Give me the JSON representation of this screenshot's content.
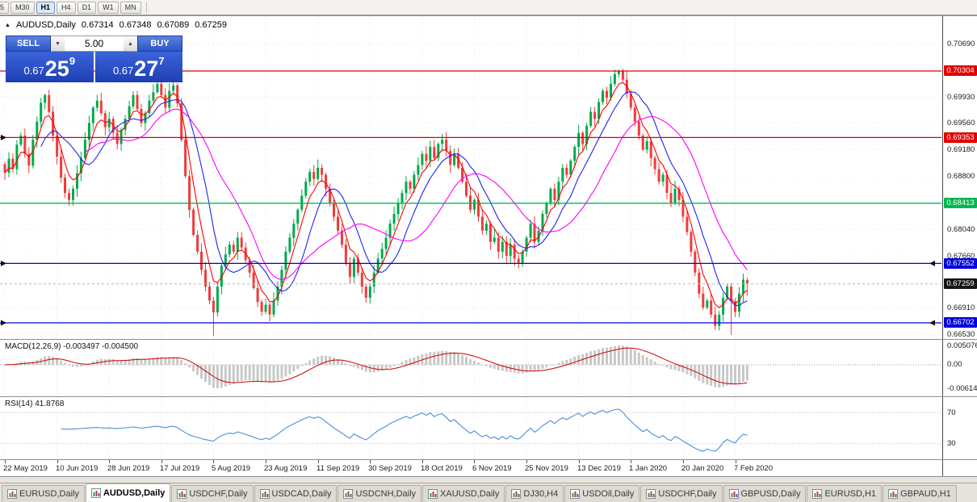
{
  "toolbar": {
    "timeframes": [
      {
        "label": "5",
        "active": false
      },
      {
        "label": "M30",
        "active": false
      },
      {
        "label": "H1",
        "active": true
      },
      {
        "label": "H4",
        "active": false
      },
      {
        "label": "D1",
        "active": false
      },
      {
        "label": "W1",
        "active": false
      },
      {
        "label": "MN",
        "active": false
      }
    ]
  },
  "chart_header": {
    "collapse_icon": "▲",
    "symbol": "AUDUSD,Daily",
    "open": "0.67314",
    "high": "0.67348",
    "low": "0.67089",
    "close": "0.67259"
  },
  "trade_panel": {
    "sell_label": "SELL",
    "buy_label": "BUY",
    "volume": "5.00",
    "spin_down_glyph": "▼",
    "spin_up_glyph": "▲",
    "sell_price_base": "0.67",
    "sell_price_big": "25",
    "sell_price_sup": "9",
    "buy_price_base": "0.67",
    "buy_price_big": "27",
    "buy_price_sup": "7",
    "panel_color": "#2c55c4"
  },
  "indicators": {
    "macd": {
      "label": "MACD(12,26,9) -0.003497 -0.004500",
      "axis": [
        "0.005076",
        "0.00",
        "-0.006148"
      ]
    },
    "rsi": {
      "label": "RSI(14) 41.8768",
      "axis": [
        "70",
        "30"
      ]
    }
  },
  "price_axis": {
    "plain_labels": [
      "0.70690",
      "0.69930",
      "0.69560",
      "0.69180",
      "0.68800",
      "0.68040",
      "0.67660",
      "0.66910",
      "0.66530"
    ],
    "plain_prices": [
      0.7069,
      0.6993,
      0.6956,
      0.6918,
      0.688,
      0.6804,
      0.6766,
      0.6691,
      0.6653
    ],
    "badges": [
      {
        "label": "0.70304",
        "price": 0.70304,
        "color": "#E00000"
      },
      {
        "label": "0.69353",
        "price": 0.69353,
        "color": "#E00000"
      },
      {
        "label": "0.68413",
        "price": 0.68413,
        "color": "#00B851"
      },
      {
        "label": "0.67552",
        "price": 0.67552,
        "color": "#0000DD"
      },
      {
        "label": "0.67259",
        "price": 0.67259,
        "color": "#141414"
      },
      {
        "label": "0.66702",
        "price": 0.66702,
        "color": "#0000DD"
      }
    ]
  },
  "date_axis": {
    "bars_per_label": 13,
    "labels": [
      "22 May 2019",
      "10 Jun 2019",
      "28 Jun 2019",
      "17 Jul 2019",
      "5 Aug 2019",
      "23 Aug 2019",
      "11 Sep 2019",
      "30 Sep 2019",
      "18 Oct 2019",
      "6 Nov 2019",
      "25 Nov 2019",
      "13 Dec 2019",
      "1 Jan 2020",
      "20 Jan 2020",
      "7 Feb 2020"
    ]
  },
  "tabbar": {
    "tabs": [
      {
        "label": "EURUSD,Daily",
        "active": false
      },
      {
        "label": "AUDUSD,Daily",
        "active": true
      },
      {
        "label": "USDCHF,Daily",
        "active": false
      },
      {
        "label": "USDCAD,Daily",
        "active": false
      },
      {
        "label": "USDCNH,Daily",
        "active": false
      },
      {
        "label": "XAUUSD,Daily",
        "active": false
      },
      {
        "label": "DJ30,H4",
        "active": false
      },
      {
        "label": "USDOil,Daily",
        "active": false
      },
      {
        "label": "USDCHF,Daily",
        "active": false
      },
      {
        "label": "GBPUSD,Daily",
        "active": false
      },
      {
        "label": "EURUSD,H1",
        "active": false
      },
      {
        "label": "GBPAUD,H1",
        "active": false
      }
    ]
  },
  "chart_data": {
    "type": "candlestick",
    "symbol": "AUDUSD",
    "timeframe": "Daily",
    "x_start_label": "22 May 2019",
    "x_end_label": "7 Feb 2020",
    "visible_bars": 186,
    "price_range": [
      0.66471,
      0.71089
    ],
    "closes": [
      0.6885,
      0.6905,
      0.689,
      0.6925,
      0.6938,
      0.6912,
      0.6895,
      0.6932,
      0.6958,
      0.6985,
      0.6996,
      0.6972,
      0.6938,
      0.6908,
      0.6878,
      0.6856,
      0.6846,
      0.6862,
      0.6884,
      0.6906,
      0.6932,
      0.6956,
      0.6978,
      0.6988,
      0.697,
      0.695,
      0.6962,
      0.6942,
      0.6926,
      0.6946,
      0.6962,
      0.698,
      0.6996,
      0.6976,
      0.6956,
      0.697,
      0.6988,
      0.7,
      0.7012,
      0.6996,
      0.6978,
      0.7002,
      0.701,
      0.6984,
      0.6932,
      0.688,
      0.6832,
      0.6796,
      0.6772,
      0.6746,
      0.6722,
      0.6702,
      0.6685,
      0.6722,
      0.6752,
      0.6768,
      0.6782,
      0.6772,
      0.6792,
      0.6778,
      0.676,
      0.6742,
      0.672,
      0.67,
      0.6686,
      0.6696,
      0.6682,
      0.6702,
      0.6722,
      0.6746,
      0.6772,
      0.6792,
      0.6812,
      0.6832,
      0.6852,
      0.6872,
      0.6886,
      0.6876,
      0.6892,
      0.6882,
      0.6862,
      0.6842,
      0.6822,
      0.6802,
      0.6782,
      0.6756,
      0.6736,
      0.6762,
      0.6742,
      0.6722,
      0.6706,
      0.6722,
      0.6742,
      0.6762,
      0.6776,
      0.6792,
      0.6812,
      0.6826,
      0.6842,
      0.6856,
      0.6872,
      0.6862,
      0.6882,
      0.6896,
      0.6912,
      0.6902,
      0.6922,
      0.6906,
      0.6926,
      0.6932,
      0.6916,
      0.6896,
      0.6912,
      0.6892,
      0.6872,
      0.6852,
      0.6832,
      0.6846,
      0.6822,
      0.6802,
      0.6812,
      0.6786,
      0.6792,
      0.6772,
      0.6786,
      0.6766,
      0.6782,
      0.6762,
      0.6756,
      0.6772,
      0.6792,
      0.6812,
      0.6786,
      0.6802,
      0.6826,
      0.6842,
      0.6862,
      0.6846,
      0.6872,
      0.6892,
      0.6882,
      0.6902,
      0.6922,
      0.6942,
      0.6926,
      0.6952,
      0.6972,
      0.6962,
      0.6986,
      0.7002,
      0.6992,
      0.7012,
      0.7026,
      0.703,
      0.7018,
      0.6998,
      0.6978,
      0.6958,
      0.6938,
      0.6918,
      0.693,
      0.6906,
      0.689,
      0.6872,
      0.6882,
      0.6856,
      0.6842,
      0.6862,
      0.6846,
      0.6822,
      0.68,
      0.6772,
      0.6742,
      0.6712,
      0.6692,
      0.6702,
      0.6682,
      0.6666,
      0.6682,
      0.6706,
      0.6722,
      0.6701,
      0.6686,
      0.6712,
      0.6732,
      0.67259
    ],
    "last_candle": {
      "open": 0.67314,
      "high": 0.67348,
      "low": 0.67089,
      "close": 0.67259
    },
    "wick_overrides": {
      "42": {
        "high": 0.7016
      },
      "52": {
        "low": 0.6651
      },
      "153": {
        "high": 0.7032
      },
      "177": {
        "low": 0.666
      },
      "181": {
        "low": 0.6653
      }
    },
    "colors": {
      "up": "#00A94C",
      "down": "#F03B3B"
    },
    "current_price": {
      "price": 0.67259,
      "color": "#141414"
    },
    "levels": [
      {
        "price": 0.70304,
        "color": "#E00000",
        "label": "0.70304",
        "left_arrow": false,
        "right_arrow": false
      },
      {
        "price": 0.69353,
        "color": "#E00000",
        "label": "0.69353",
        "left_arrow": true,
        "right_arrow": false
      },
      {
        "price": 0.68413,
        "color": "#00B851",
        "label": "0.68413",
        "left_arrow": false,
        "right_arrow": false
      },
      {
        "price": 0.67552,
        "color": "#0000DD",
        "label": "0.67552",
        "left_arrow": true,
        "right_arrow": true
      },
      {
        "price": 0.66702,
        "color": "#0000DD",
        "label": "0.66702",
        "left_arrow": true,
        "right_arrow": true
      }
    ],
    "moving_averages": [
      {
        "period": 5,
        "type": "ema",
        "color": "#FF0000"
      },
      {
        "period": 10,
        "type": "sma",
        "color": "#2222EE"
      },
      {
        "period": 21,
        "type": "sma",
        "color": "#FF00FF"
      }
    ],
    "macd": {
      "fast": 12,
      "slow": 26,
      "signal": 9,
      "value": -0.003497,
      "signal_value": -0.0045,
      "scale_max": 0.005076,
      "scale_min": -0.006148,
      "hist_color": "#C8C8C8",
      "signal_color": "#D40000"
    },
    "rsi": {
      "period": 14,
      "value": 41.8768,
      "levels": [
        70,
        30
      ],
      "color": "#4A90D9",
      "range": [
        10,
        90
      ]
    }
  }
}
